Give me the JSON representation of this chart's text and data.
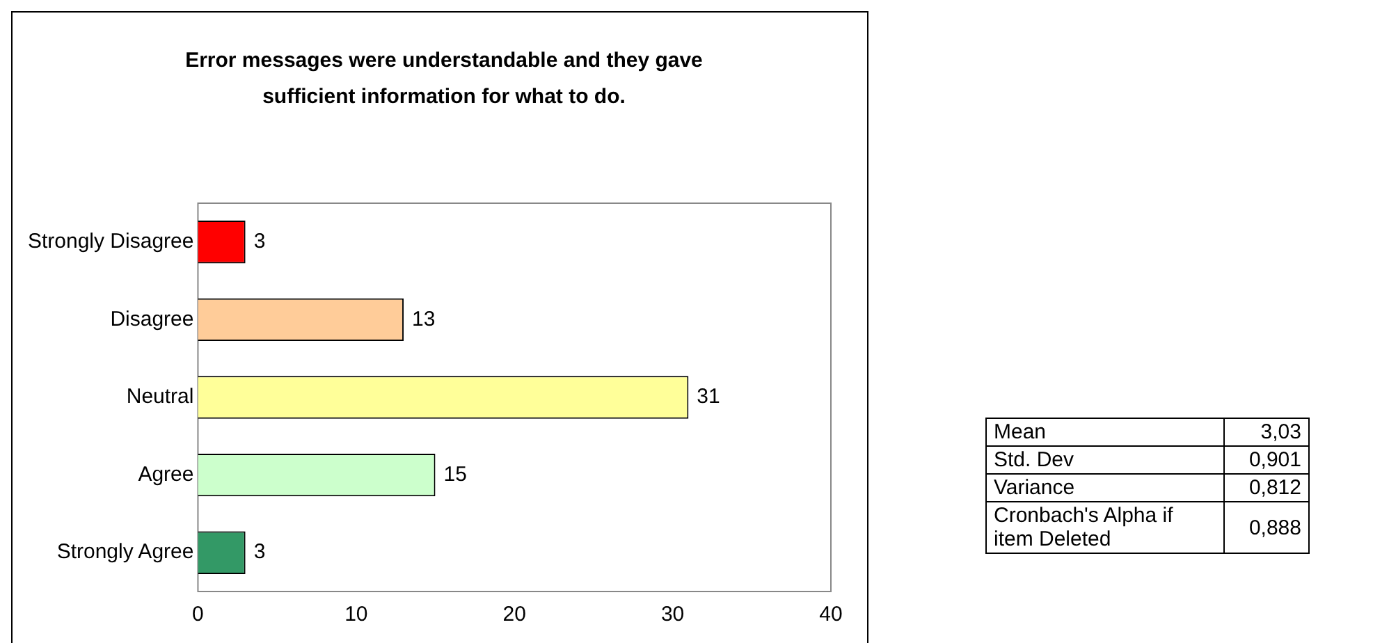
{
  "chart_data": {
    "type": "bar",
    "orientation": "horizontal",
    "title": "Error messages were understandable and they gave sufficient information for what to do.",
    "categories": [
      "Strongly Disagree",
      "Disagree",
      "Neutral",
      "Agree",
      "Strongly Agree"
    ],
    "values": [
      3,
      13,
      31,
      15,
      3
    ],
    "colors": [
      "#ff0000",
      "#ffcc99",
      "#ffff99",
      "#ccffcc",
      "#339966"
    ],
    "xlim": [
      0,
      40
    ],
    "xticks": [
      0,
      10,
      20,
      30,
      40
    ],
    "grid": false,
    "legend": false,
    "data_labels": true,
    "annotations": [
      "Mean",
      "3,03",
      "Std. Dev",
      "0,901",
      "Variance",
      "0,812",
      "Cronbach's Alpha if item Deleted",
      "0,888"
    ]
  }
}
